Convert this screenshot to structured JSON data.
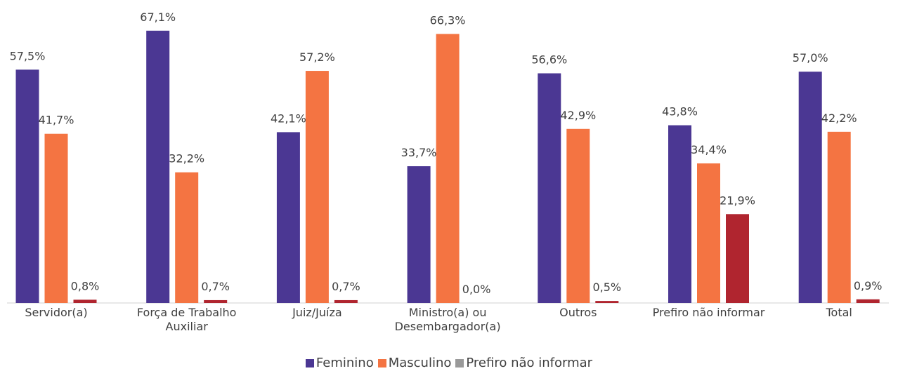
{
  "chart_data": {
    "type": "bar",
    "categories": [
      "Servidor(a)",
      "Força de Trabalho Auxiliar",
      "Juiz/Juíza",
      "Ministro(a) ou Desembargador(a)",
      "Outros",
      "Prefiro não informar",
      "Total"
    ],
    "series": [
      {
        "name": "Feminino",
        "color": "#4b3793",
        "values": [
          57.5,
          67.1,
          42.1,
          33.7,
          56.6,
          43.8,
          57.0
        ],
        "value_labels": [
          "57,5%",
          "67,1%",
          "42,1%",
          "33,7%",
          "56,6%",
          "43,8%",
          "57,0%"
        ]
      },
      {
        "name": "Masculino",
        "color": "#f47442",
        "values": [
          41.7,
          32.2,
          57.2,
          66.3,
          42.9,
          34.4,
          42.2
        ],
        "value_labels": [
          "41,7%",
          "32,2%",
          "57,2%",
          "66,3%",
          "42,9%",
          "34,4%",
          "42,2%"
        ]
      },
      {
        "name": "Prefiro não informar",
        "color": "#b0252f",
        "legend_color": "#9a9a9a",
        "values": [
          0.8,
          0.7,
          0.7,
          0.0,
          0.5,
          21.9,
          0.9
        ],
        "value_labels": [
          "0,8%",
          "0,7%",
          "0,7%",
          "0,0%",
          "0,5%",
          "21,9%",
          "0,9%"
        ]
      }
    ],
    "ylim": [
      0,
      70
    ],
    "legend": "bottom"
  }
}
